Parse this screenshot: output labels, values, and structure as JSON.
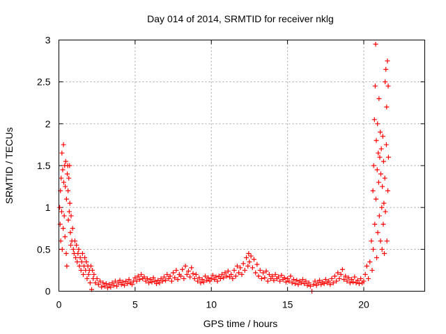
{
  "chart_data": {
    "type": "scatter",
    "title": "Day 014 of 2014, SRMTID for receiver nklg",
    "xlabel": "GPS time / hours",
    "ylabel": "SRMTID / TECUs",
    "xlim": [
      0,
      24
    ],
    "ylim": [
      0,
      3
    ],
    "xticks": [
      0,
      5,
      10,
      15,
      20
    ],
    "yticks": [
      0,
      0.5,
      1,
      1.5,
      2,
      2.5,
      3
    ],
    "xtick_labels": [
      "0",
      "5",
      "10",
      "15",
      "20"
    ],
    "ytick_labels": [
      "0",
      "0.5",
      "1",
      "1.5",
      "2",
      "2.5",
      "3"
    ],
    "grid": true,
    "marker": "+",
    "colors": {
      "series": "#ff0000",
      "axes": "#000000",
      "grid": "#a0a0a0"
    },
    "series": [
      {
        "name": "SRMTID",
        "points": [
          [
            0.05,
            1.0
          ],
          [
            0.08,
            0.8
          ],
          [
            0.1,
            1.2
          ],
          [
            0.12,
            0.6
          ],
          [
            0.15,
            1.35
          ],
          [
            0.18,
            0.95
          ],
          [
            0.2,
            1.65
          ],
          [
            0.22,
            0.5
          ],
          [
            0.25,
            1.45
          ],
          [
            0.28,
            0.75
          ],
          [
            0.3,
            1.75
          ],
          [
            0.32,
            1.3
          ],
          [
            0.35,
            0.9
          ],
          [
            0.38,
            1.5
          ],
          [
            0.4,
            0.65
          ],
          [
            0.42,
            1.25
          ],
          [
            0.45,
            1.55
          ],
          [
            0.48,
            0.45
          ],
          [
            0.5,
            1.1
          ],
          [
            0.52,
            0.3
          ],
          [
            0.55,
            1.4
          ],
          [
            0.58,
            1.5
          ],
          [
            0.6,
            1.2
          ],
          [
            0.62,
            0.85
          ],
          [
            0.65,
            1.35
          ],
          [
            0.68,
            0.95
          ],
          [
            0.7,
            1.5
          ],
          [
            0.72,
            1.05
          ],
          [
            0.75,
            0.7
          ],
          [
            0.78,
            0.55
          ],
          [
            0.8,
            0.9
          ],
          [
            0.85,
            0.6
          ],
          [
            0.9,
            0.75
          ],
          [
            0.95,
            0.5
          ],
          [
            1.0,
            0.45
          ],
          [
            1.05,
            0.6
          ],
          [
            1.1,
            0.4
          ],
          [
            1.15,
            0.55
          ],
          [
            1.2,
            0.35
          ],
          [
            1.25,
            0.45
          ],
          [
            1.3,
            0.5
          ],
          [
            1.35,
            0.3
          ],
          [
            1.4,
            0.4
          ],
          [
            1.45,
            0.25
          ],
          [
            1.5,
            0.35
          ],
          [
            1.55,
            0.45
          ],
          [
            1.6,
            0.2
          ],
          [
            1.65,
            0.3
          ],
          [
            1.7,
            0.4
          ],
          [
            1.75,
            0.25
          ],
          [
            1.8,
            0.35
          ],
          [
            1.85,
            0.15
          ],
          [
            1.9,
            0.3
          ],
          [
            1.95,
            0.2
          ],
          [
            2.0,
            0.25
          ],
          [
            2.05,
            0.1
          ],
          [
            2.1,
            0.3
          ],
          [
            2.15,
            0.02
          ],
          [
            2.2,
            0.25
          ],
          [
            2.25,
            0.15
          ],
          [
            2.3,
            0.2
          ],
          [
            2.4,
            0.1
          ],
          [
            2.5,
            0.15
          ],
          [
            2.6,
            0.08
          ],
          [
            2.7,
            0.12
          ],
          [
            2.8,
            0.05
          ],
          [
            2.9,
            0.1
          ],
          [
            3.0,
            0.06
          ],
          [
            3.1,
            0.09
          ],
          [
            3.2,
            0.04
          ],
          [
            3.3,
            0.08
          ],
          [
            3.4,
            0.05
          ],
          [
            3.5,
            0.1
          ],
          [
            3.6,
            0.07
          ],
          [
            3.7,
            0.12
          ],
          [
            3.8,
            0.06
          ],
          [
            3.9,
            0.1
          ],
          [
            4.0,
            0.13
          ],
          [
            4.1,
            0.08
          ],
          [
            4.2,
            0.11
          ],
          [
            4.3,
            0.07
          ],
          [
            4.4,
            0.12
          ],
          [
            4.5,
            0.09
          ],
          [
            4.6,
            0.14
          ],
          [
            4.7,
            0.1
          ],
          [
            4.8,
            0.08
          ],
          [
            4.9,
            0.12
          ],
          [
            5.0,
            0.16
          ],
          [
            5.1,
            0.12
          ],
          [
            5.2,
            0.18
          ],
          [
            5.3,
            0.14
          ],
          [
            5.4,
            0.2
          ],
          [
            5.5,
            0.15
          ],
          [
            5.6,
            0.17
          ],
          [
            5.7,
            0.12
          ],
          [
            5.8,
            0.15
          ],
          [
            5.9,
            0.1
          ],
          [
            6.0,
            0.14
          ],
          [
            6.1,
            0.11
          ],
          [
            6.2,
            0.16
          ],
          [
            6.3,
            0.12
          ],
          [
            6.4,
            0.09
          ],
          [
            6.5,
            0.13
          ],
          [
            6.6,
            0.1
          ],
          [
            6.7,
            0.15
          ],
          [
            6.8,
            0.12
          ],
          [
            6.9,
            0.17
          ],
          [
            7.0,
            0.13
          ],
          [
            7.1,
            0.2
          ],
          [
            7.2,
            0.15
          ],
          [
            7.3,
            0.18
          ],
          [
            7.4,
            0.12
          ],
          [
            7.5,
            0.22
          ],
          [
            7.6,
            0.16
          ],
          [
            7.7,
            0.25
          ],
          [
            7.8,
            0.14
          ],
          [
            7.9,
            0.2
          ],
          [
            8.0,
            0.18
          ],
          [
            8.1,
            0.26
          ],
          [
            8.2,
            0.15
          ],
          [
            8.3,
            0.3
          ],
          [
            8.4,
            0.2
          ],
          [
            8.5,
            0.24
          ],
          [
            8.6,
            0.17
          ],
          [
            8.7,
            0.28
          ],
          [
            8.8,
            0.21
          ],
          [
            8.9,
            0.15
          ],
          [
            9.0,
            0.2
          ],
          [
            9.1,
            0.12
          ],
          [
            9.2,
            0.16
          ],
          [
            9.3,
            0.1
          ],
          [
            9.4,
            0.14
          ],
          [
            9.5,
            0.11
          ],
          [
            9.6,
            0.18
          ],
          [
            9.7,
            0.13
          ],
          [
            9.8,
            0.16
          ],
          [
            9.9,
            0.12
          ],
          [
            10.0,
            0.15
          ],
          [
            10.1,
            0.19
          ],
          [
            10.2,
            0.14
          ],
          [
            10.3,
            0.17
          ],
          [
            10.4,
            0.12
          ],
          [
            10.5,
            0.18
          ],
          [
            10.6,
            0.15
          ],
          [
            10.7,
            0.2
          ],
          [
            10.8,
            0.16
          ],
          [
            10.9,
            0.22
          ],
          [
            11.0,
            0.18
          ],
          [
            11.1,
            0.24
          ],
          [
            11.2,
            0.17
          ],
          [
            11.3,
            0.2
          ],
          [
            11.4,
            0.15
          ],
          [
            11.5,
            0.25
          ],
          [
            11.6,
            0.18
          ],
          [
            11.7,
            0.3
          ],
          [
            11.8,
            0.22
          ],
          [
            11.9,
            0.28
          ],
          [
            12.0,
            0.2
          ],
          [
            12.1,
            0.33
          ],
          [
            12.2,
            0.25
          ],
          [
            12.3,
            0.4
          ],
          [
            12.4,
            0.3
          ],
          [
            12.45,
            0.45
          ],
          [
            12.5,
            0.35
          ],
          [
            12.6,
            0.42
          ],
          [
            12.7,
            0.28
          ],
          [
            12.8,
            0.38
          ],
          [
            12.9,
            0.22
          ],
          [
            13.0,
            0.32
          ],
          [
            13.1,
            0.18
          ],
          [
            13.2,
            0.25
          ],
          [
            13.3,
            0.15
          ],
          [
            13.4,
            0.22
          ],
          [
            13.5,
            0.16
          ],
          [
            13.6,
            0.24
          ],
          [
            13.7,
            0.12
          ],
          [
            13.8,
            0.2
          ],
          [
            13.9,
            0.15
          ],
          [
            14.0,
            0.18
          ],
          [
            14.1,
            0.13
          ],
          [
            14.2,
            0.2
          ],
          [
            14.3,
            0.15
          ],
          [
            14.4,
            0.17
          ],
          [
            14.5,
            0.12
          ],
          [
            14.6,
            0.19
          ],
          [
            14.7,
            0.14
          ],
          [
            14.8,
            0.16
          ],
          [
            14.9,
            0.11
          ],
          [
            15.0,
            0.15
          ],
          [
            15.1,
            0.12
          ],
          [
            15.2,
            0.18
          ],
          [
            15.3,
            0.1
          ],
          [
            15.4,
            0.14
          ],
          [
            15.5,
            0.09
          ],
          [
            15.6,
            0.13
          ],
          [
            15.7,
            0.08
          ],
          [
            15.8,
            0.12
          ],
          [
            15.9,
            0.1
          ],
          [
            16.0,
            0.14
          ],
          [
            16.1,
            0.09
          ],
          [
            16.2,
            0.12
          ],
          [
            16.3,
            0.07
          ],
          [
            16.4,
            0.1
          ],
          [
            16.5,
            0.06
          ],
          [
            16.6,
            0.0
          ],
          [
            16.7,
            0.08
          ],
          [
            16.8,
            0.12
          ],
          [
            16.9,
            0.07
          ],
          [
            17.0,
            0.1
          ],
          [
            17.1,
            0.13
          ],
          [
            17.2,
            0.08
          ],
          [
            17.3,
            0.11
          ],
          [
            17.4,
            0.09
          ],
          [
            17.5,
            0.14
          ],
          [
            17.6,
            0.1
          ],
          [
            17.7,
            0.12
          ],
          [
            17.8,
            0.08
          ],
          [
            17.9,
            0.15
          ],
          [
            18.0,
            0.1
          ],
          [
            18.1,
            0.18
          ],
          [
            18.2,
            0.12
          ],
          [
            18.3,
            0.22
          ],
          [
            18.4,
            0.15
          ],
          [
            18.5,
            0.2
          ],
          [
            18.6,
            0.26
          ],
          [
            18.7,
            0.14
          ],
          [
            18.8,
            0.18
          ],
          [
            18.9,
            0.12
          ],
          [
            19.0,
            0.16
          ],
          [
            19.1,
            0.1
          ],
          [
            19.2,
            0.14
          ],
          [
            19.3,
            0.11
          ],
          [
            19.4,
            0.17
          ],
          [
            19.5,
            0.1
          ],
          [
            19.6,
            0.13
          ],
          [
            19.7,
            0.09
          ],
          [
            19.8,
            0.15
          ],
          [
            19.9,
            0.1
          ],
          [
            20.0,
            0.12
          ],
          [
            20.1,
            0.2
          ],
          [
            20.2,
            0.3
          ],
          [
            20.3,
            0.15
          ],
          [
            20.4,
            0.35
          ],
          [
            20.5,
            0.6
          ],
          [
            20.55,
            0.25
          ],
          [
            20.6,
            1.2
          ],
          [
            20.62,
            0.5
          ],
          [
            20.65,
            1.5
          ],
          [
            20.7,
            2.05
          ],
          [
            20.72,
            0.8
          ],
          [
            20.75,
            2.45
          ],
          [
            20.78,
            2.95
          ],
          [
            20.8,
            1.1
          ],
          [
            20.82,
            1.8
          ],
          [
            20.85,
            0.4
          ],
          [
            20.88,
            1.45
          ],
          [
            20.9,
            2.0
          ],
          [
            20.92,
            0.7
          ],
          [
            20.95,
            1.65
          ],
          [
            20.98,
            1.3
          ],
          [
            21.0,
            2.3
          ],
          [
            21.02,
            0.9
          ],
          [
            21.05,
            1.6
          ],
          [
            21.08,
            1.9
          ],
          [
            21.1,
            0.6
          ],
          [
            21.12,
            1.4
          ],
          [
            21.15,
            1.7
          ],
          [
            21.18,
            1.0
          ],
          [
            21.2,
            0.5
          ],
          [
            21.22,
            1.25
          ],
          [
            21.25,
            1.85
          ],
          [
            21.28,
            0.8
          ],
          [
            21.3,
            1.55
          ],
          [
            21.32,
            1.05
          ],
          [
            21.35,
            0.45
          ],
          [
            21.38,
            1.35
          ],
          [
            21.4,
            2.5
          ],
          [
            21.42,
            0.95
          ],
          [
            21.45,
            2.65
          ],
          [
            21.48,
            1.75
          ],
          [
            21.5,
            2.2
          ],
          [
            21.52,
            0.6
          ],
          [
            21.55,
            2.75
          ],
          [
            21.58,
            1.2
          ],
          [
            21.6,
            2.45
          ],
          [
            21.62,
            1.6
          ]
        ]
      }
    ]
  }
}
